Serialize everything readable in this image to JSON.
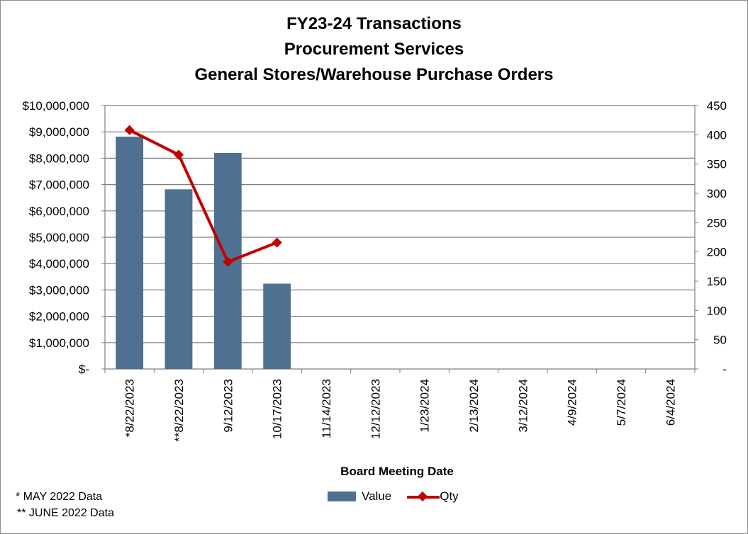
{
  "chart_data": {
    "type": "bar",
    "title": [
      "FY23-24 Transactions",
      "Procurement Services",
      "General Stores/Warehouse Purchase Orders"
    ],
    "xlabel": "Board Meeting Date",
    "categories": [
      "*8/22/2023",
      "**8/22/2023",
      "9/12/2023",
      "10/17/2023",
      "11/14/2023",
      "12/12/2023",
      "1/23/2024",
      "2/13/2024",
      "3/12/2024",
      "4/9/2024",
      "5/7/2024",
      "6/4/2024"
    ],
    "series": [
      {
        "name": "Value",
        "type": "bar",
        "axis": "left",
        "values": [
          8820000,
          6820000,
          8200000,
          3240000,
          null,
          null,
          null,
          null,
          null,
          null,
          null,
          null
        ]
      },
      {
        "name": "Qty",
        "type": "line",
        "axis": "right",
        "values": [
          408,
          366,
          183,
          216,
          null,
          null,
          null,
          null,
          null,
          null,
          null,
          null
        ]
      }
    ],
    "y_left": {
      "ylim": [
        0,
        10000000
      ],
      "ticks": [
        "$-",
        "$1,000,000",
        "$2,000,000",
        "$3,000,000",
        "$4,000,000",
        "$5,000,000",
        "$6,000,000",
        "$7,000,000",
        "$8,000,000",
        "$9,000,000",
        "$10,000,000"
      ]
    },
    "y_right": {
      "ylim": [
        0,
        450
      ],
      "ticks": [
        "-",
        "50",
        "100",
        "150",
        "200",
        "250",
        "300",
        "350",
        "400",
        "450"
      ]
    },
    "grid": true,
    "legend_position": "bottom",
    "colors": {
      "bar": "#4f7191",
      "line": "#c00000",
      "grid": "#7f7f7f"
    }
  },
  "notes": [
    "*  MAY 2022 Data",
    "** JUNE 2022 Data"
  ]
}
